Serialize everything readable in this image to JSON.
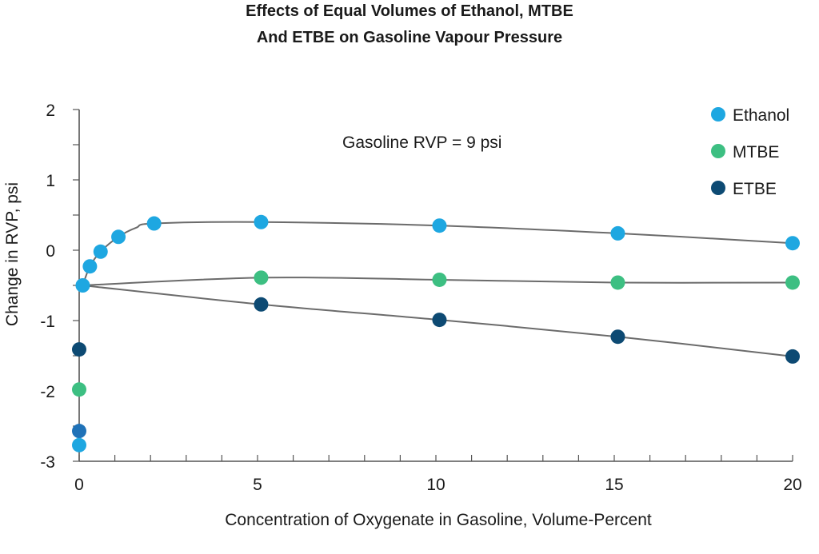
{
  "chart_data": {
    "type": "scatter",
    "title_lines": [
      "Effects of Equal Volumes of Ethanol, MTBE",
      "And ETBE on Gasoline Vapour Pressure"
    ],
    "xlabel": "Concentration of Oxygenate in Gasoline, Volume-Percent",
    "ylabel": "Change in RVP, psi",
    "annotation": "Gasoline RVP = 9 psi",
    "xlim": [
      0,
      20
    ],
    "ylim": [
      -3,
      2
    ],
    "x_ticks": [
      0,
      5,
      10,
      15,
      20
    ],
    "y_ticks": [
      -3,
      -2,
      -1,
      0,
      1,
      2
    ],
    "x_minor_step": 1,
    "y_minor_step": 0.5,
    "grid": false,
    "legend_position": "top-right",
    "line_color": "#6b6b6b",
    "series": [
      {
        "name": "Ethanol",
        "color": "#1ea7e1",
        "points": [
          [
            0.1,
            -0.5
          ],
          [
            0.3,
            -0.23
          ],
          [
            0.6,
            -0.02
          ],
          [
            1.1,
            0.19
          ],
          [
            2.1,
            0.38
          ],
          [
            5.1,
            0.4
          ],
          [
            10.1,
            0.35
          ],
          [
            15.1,
            0.24
          ],
          [
            20.0,
            0.1
          ]
        ],
        "curve": [
          [
            0.1,
            -0.5
          ],
          [
            0.3,
            -0.23
          ],
          [
            0.6,
            -0.02
          ],
          [
            1.1,
            0.19
          ],
          [
            1.6,
            0.32
          ],
          [
            2.1,
            0.38
          ],
          [
            5.1,
            0.4
          ],
          [
            10.1,
            0.35
          ],
          [
            15.1,
            0.24
          ],
          [
            20.0,
            0.1
          ]
        ]
      },
      {
        "name": "MTBE",
        "color": "#3dbf82",
        "points": [
          [
            5.1,
            -0.39
          ],
          [
            10.1,
            -0.42
          ],
          [
            15.1,
            -0.46
          ],
          [
            20.0,
            -0.46
          ]
        ],
        "curve": [
          [
            0.1,
            -0.5
          ],
          [
            5.1,
            -0.39
          ],
          [
            10.1,
            -0.42
          ],
          [
            15.1,
            -0.46
          ],
          [
            20.0,
            -0.46
          ]
        ]
      },
      {
        "name": "ETBE",
        "color": "#0d4a73",
        "points": [
          [
            5.1,
            -0.77
          ],
          [
            10.1,
            -0.99
          ],
          [
            15.1,
            -1.23
          ],
          [
            20.0,
            -1.51
          ]
        ],
        "curve": [
          [
            0.1,
            -0.5
          ],
          [
            5.1,
            -0.77
          ],
          [
            10.1,
            -0.99
          ],
          [
            15.1,
            -1.23
          ],
          [
            20.0,
            -1.51
          ]
        ]
      }
    ],
    "extra_points": [
      {
        "x": 0.0,
        "y": -1.41,
        "color": "#0d4a73"
      },
      {
        "x": 0.0,
        "y": -1.98,
        "color": "#3dbf82"
      },
      {
        "x": 0.0,
        "y": -2.57,
        "color": "#1f72b8"
      },
      {
        "x": 0.0,
        "y": -2.77,
        "color": "#1ea7e1"
      }
    ]
  }
}
